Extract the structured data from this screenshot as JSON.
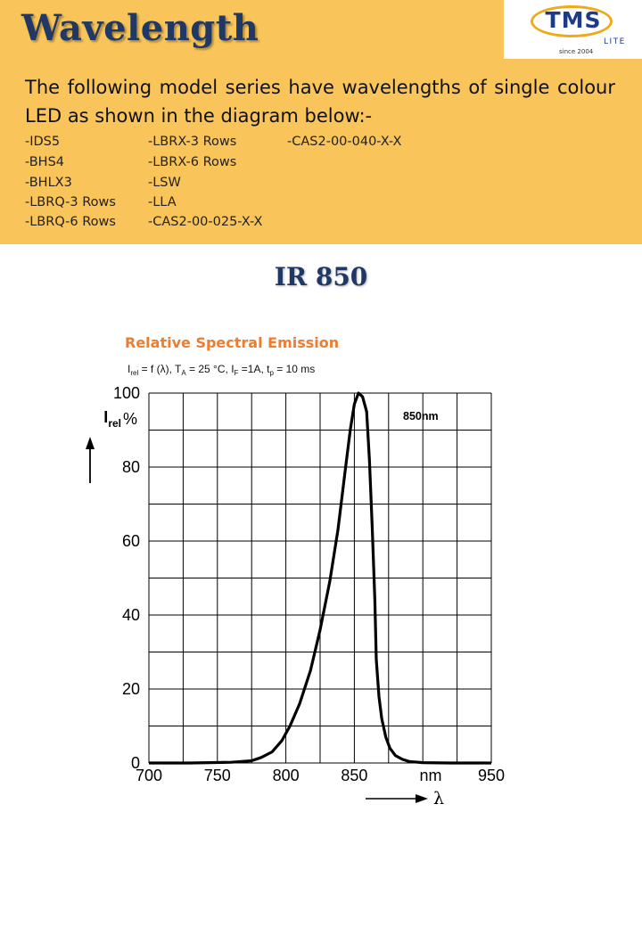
{
  "header": {
    "title": "Wavelength",
    "logo": {
      "word": "TMS",
      "sub": "LITE",
      "since": "since 2004"
    },
    "intro": "The following model series have wavelengths of single colour LED as shown in the diagram below:-"
  },
  "models": [
    "-IDS5",
    "-BHS4",
    "-BHLX3",
    "-LBRQ-3 Rows",
    "-LBRQ-6 Rows",
    "-LBRX-3 Rows",
    "-LBRX-6 Rows",
    "-LSW",
    "-LLA",
    "-CAS2-00-025-X-X",
    "-CAS2-00-040-X-X"
  ],
  "section_title": "IR 850",
  "chart_data": {
    "type": "line",
    "title": "Relative Spectral Emission",
    "condition": {
      "irel": "I",
      "irel_sub": "rel",
      "eq": " = f (λ), T",
      "ta_sub": "A",
      "ta_val": " = 25 °C, I",
      "if_sub": "F",
      "if_val": " =1A, t",
      "tp_sub": "p",
      "tp_val": " = 10 ms"
    },
    "ylabel": {
      "main": "I",
      "sub": "rel"
    },
    "y_unit": "%",
    "x_unit": "nm",
    "xlabel": "λ",
    "xlim": [
      700,
      950
    ],
    "ylim": [
      0,
      100
    ],
    "x_ticks": [
      "700",
      "750",
      "800",
      "850",
      "950"
    ],
    "y_ticks": [
      "0",
      "20",
      "40",
      "60",
      "80",
      "100"
    ],
    "annotation": "850nm",
    "grid": true,
    "series": [
      {
        "x": [
          700,
          730,
          760,
          775,
          782,
          790,
          797,
          803,
          810,
          818,
          825,
          832,
          838,
          843,
          847,
          850,
          853,
          856,
          859,
          861,
          863,
          865,
          866,
          868,
          870,
          873,
          876,
          880,
          885,
          890,
          900,
          920,
          950
        ],
        "y": [
          0,
          0,
          0.2,
          0.6,
          1.5,
          3,
          6,
          10,
          16,
          25,
          36,
          49,
          63,
          78,
          90,
          97,
          100,
          99,
          95,
          82,
          64,
          44,
          28,
          18,
          12,
          7,
          4,
          2,
          1,
          0.4,
          0.1,
          0,
          0
        ]
      }
    ]
  }
}
